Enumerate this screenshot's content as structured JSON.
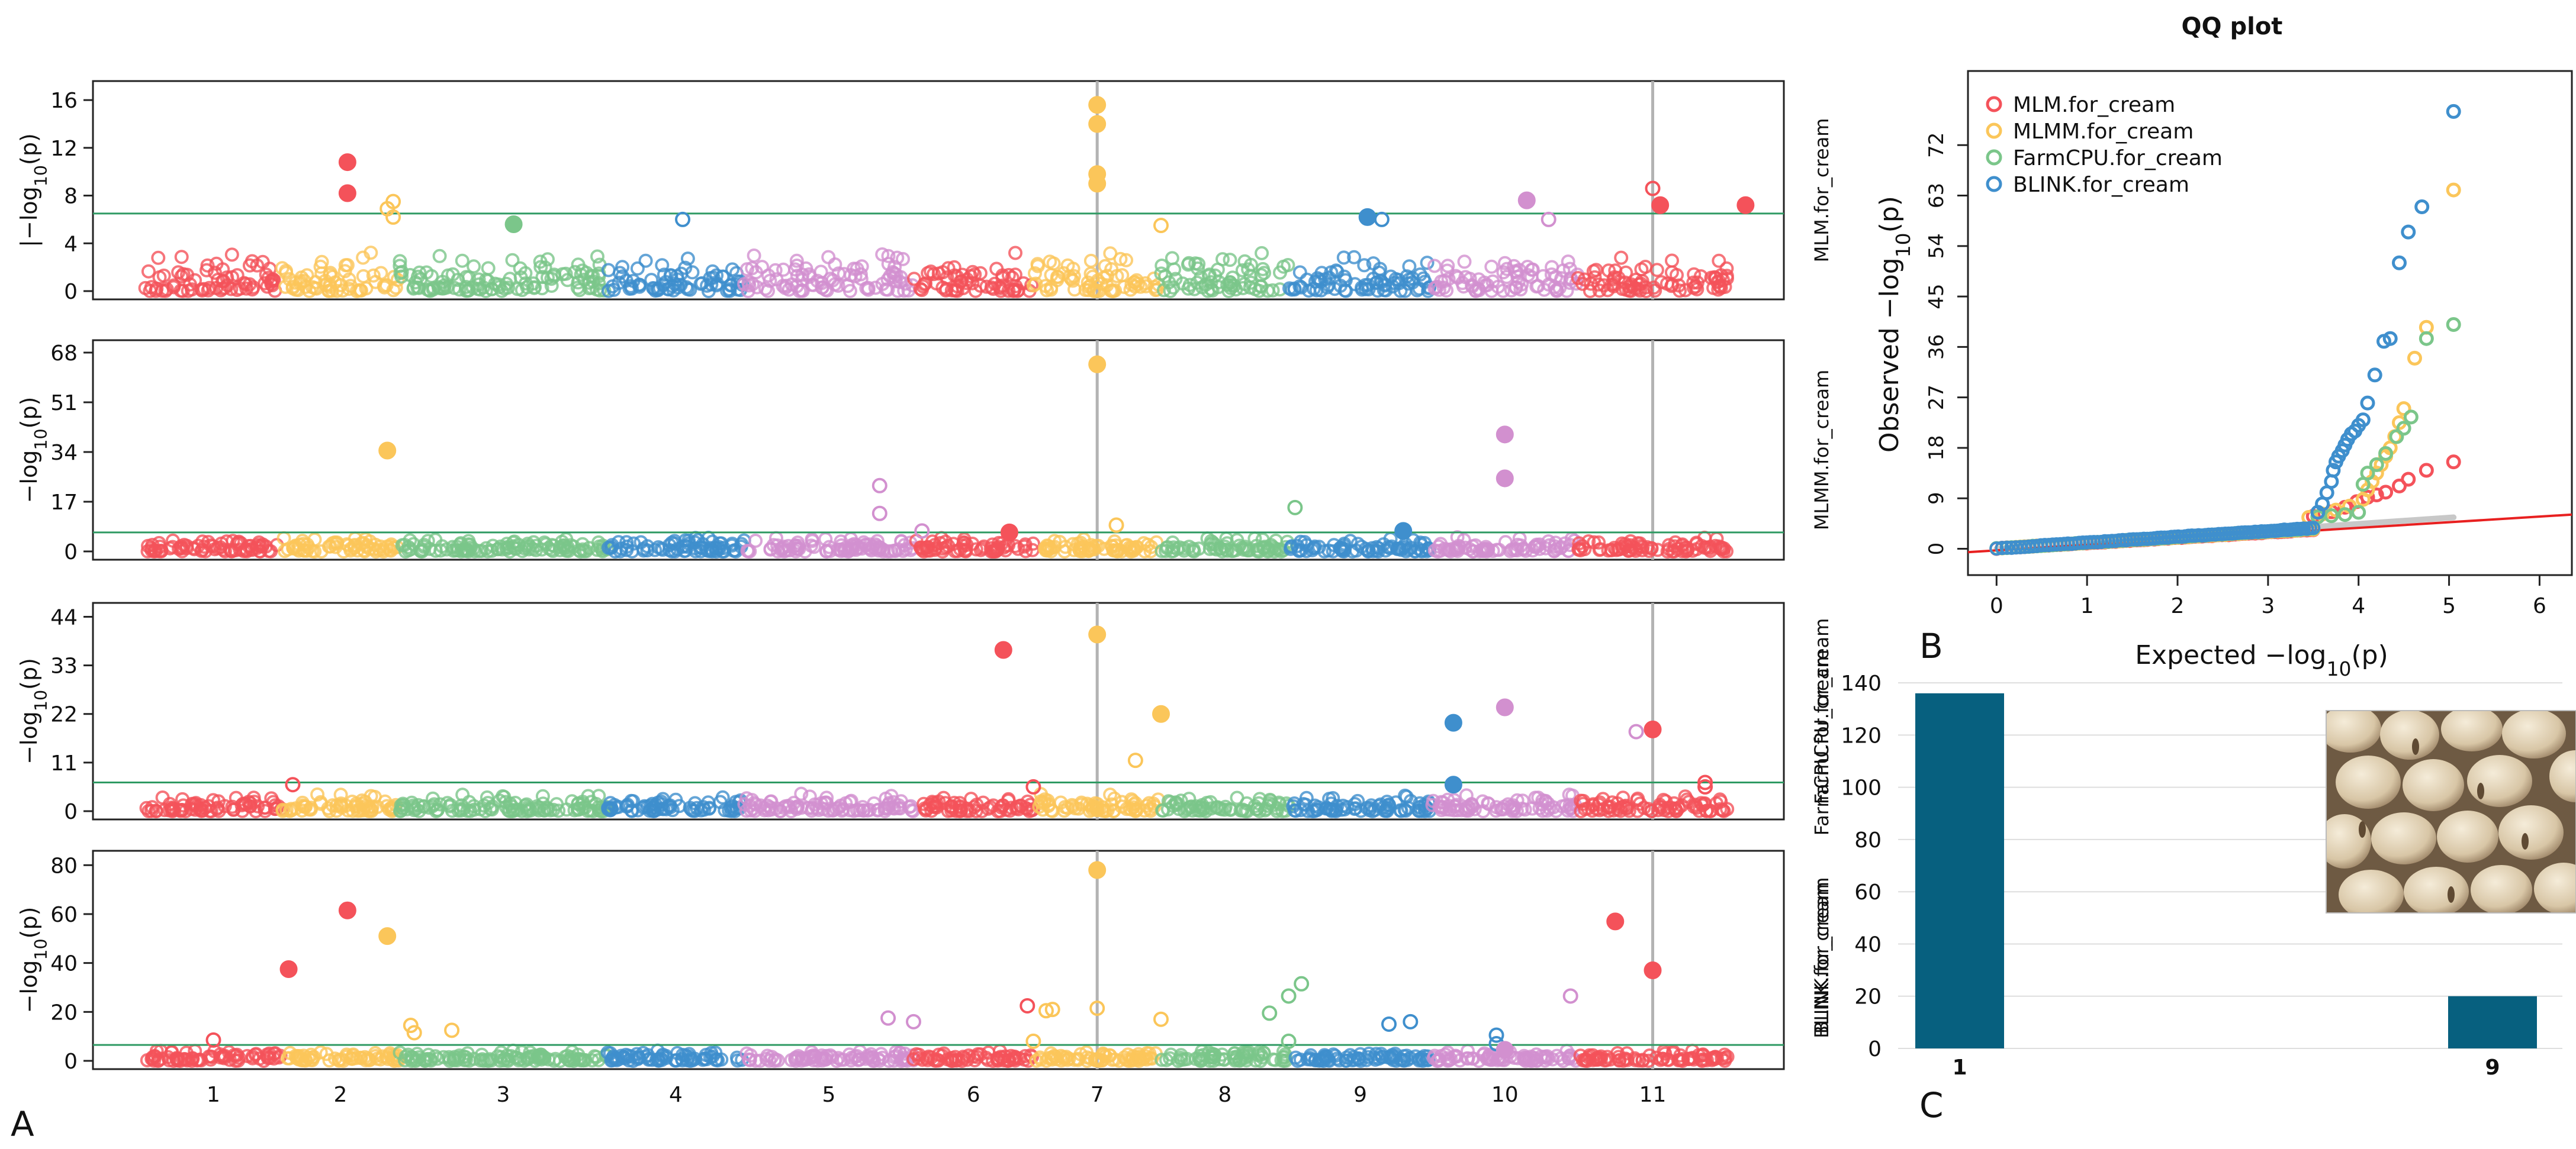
{
  "panel_labels": {
    "a": "A",
    "b": "B",
    "c": "C"
  },
  "colors": {
    "chr": [
      "#f4525a",
      "#fbc65a",
      "#7bc68a",
      "#3f8fcd",
      "#d290cf"
    ],
    "threshold": "#2f9a63",
    "highlight": "#b3b3b3",
    "bar": "#07607f",
    "diagonal": "#e82020",
    "ci": "#c8c8c8"
  },
  "chart_data": [
    {
      "type": "scatter",
      "name": "manhattan",
      "chromosomes": [
        "1",
        "2",
        "3",
        "4",
        "5",
        "6",
        "7",
        "8",
        "9",
        "10",
        "11"
      ],
      "chr_widths": [
        1.05,
        0.9,
        1.6,
        1.05,
        1.3,
        0.92,
        0.98,
        0.98,
        1.1,
        1.12,
        1.15
      ],
      "highlight_chr_positions": [
        7.0,
        11.0
      ],
      "tracks": [
        {
          "ylabel": "MLM.for_cream",
          "axis_label": "|−log10(p)",
          "ylim": [
            0,
            16.8
          ],
          "yticks": [
            0,
            4,
            8,
            12,
            16
          ],
          "threshold": 6.5,
          "base_max": 3.4,
          "hits": [
            {
              "chr": 1,
              "pos": 0.98,
              "y": 10.8,
              "filled": true
            },
            {
              "chr": 1,
              "pos": 0.98,
              "y": 8.2,
              "filled": true
            },
            {
              "chr": 2,
              "pos": 0.45,
              "y": 7.5,
              "filled": false
            },
            {
              "chr": 2,
              "pos": 0.4,
              "y": 6.9,
              "filled": false
            },
            {
              "chr": 2,
              "pos": 0.45,
              "y": 6.2,
              "filled": false
            },
            {
              "chr": 3,
              "pos": 0.05,
              "y": 5.6,
              "filled": true
            },
            {
              "chr": 4,
              "pos": 0.05,
              "y": 6.0,
              "filled": false
            },
            {
              "chr": 7,
              "pos": 0.0,
              "y": 15.6,
              "filled": true
            },
            {
              "chr": 7,
              "pos": 0.0,
              "y": 14.0,
              "filled": true
            },
            {
              "chr": 7,
              "pos": 0.0,
              "y": 9.8,
              "filled": true
            },
            {
              "chr": 7,
              "pos": 0.0,
              "y": 9.0,
              "filled": true
            },
            {
              "chr": 7,
              "pos": 0.5,
              "y": 5.5,
              "filled": false
            },
            {
              "chr": 9,
              "pos": 0.05,
              "y": 6.2,
              "filled": true
            },
            {
              "chr": 9,
              "pos": 0.15,
              "y": 6.0,
              "filled": false
            },
            {
              "chr": 10,
              "pos": 0.15,
              "y": 7.6,
              "filled": true
            },
            {
              "chr": 10,
              "pos": 0.3,
              "y": 6.0,
              "filled": false
            },
            {
              "chr": 11,
              "pos": 0.0,
              "y": 8.6,
              "filled": false
            },
            {
              "chr": 11,
              "pos": 0.05,
              "y": 7.2,
              "filled": true
            },
            {
              "chr": 11,
              "pos": 0.62,
              "y": 7.2,
              "filled": true
            }
          ]
        },
        {
          "ylabel": "MLMM.for_cream",
          "axis_label": "−log10(p)",
          "ylim": [
            0,
            69
          ],
          "yticks": [
            0,
            17,
            34,
            51,
            68
          ],
          "threshold": 6.5,
          "base_max": 5.0,
          "hits": [
            {
              "chr": 2,
              "pos": 0.4,
              "y": 34.5,
              "filled": true
            },
            {
              "chr": 5,
              "pos": 0.3,
              "y": 22.5,
              "filled": false
            },
            {
              "chr": 5,
              "pos": 0.3,
              "y": 13.0,
              "filled": false
            },
            {
              "chr": 5,
              "pos": 0.55,
              "y": 7.0,
              "filled": false
            },
            {
              "chr": 6,
              "pos": 0.3,
              "y": 6.5,
              "filled": true
            },
            {
              "chr": 7,
              "pos": 0.0,
              "y": 64.0,
              "filled": true
            },
            {
              "chr": 7,
              "pos": 0.15,
              "y": 9.0,
              "filled": false
            },
            {
              "chr": 8,
              "pos": 0.55,
              "y": 15.0,
              "filled": false
            },
            {
              "chr": 9,
              "pos": 0.3,
              "y": 7.0,
              "filled": true
            },
            {
              "chr": 10,
              "pos": 0.0,
              "y": 40.0,
              "filled": true
            },
            {
              "chr": 10,
              "pos": 0.0,
              "y": 25.0,
              "filled": true
            }
          ]
        },
        {
          "ylabel": "FarmCPU.for_cream",
          "axis_label": "−log10(p)",
          "ylim": [
            0,
            45
          ],
          "yticks": [
            0,
            11,
            22,
            33,
            44
          ],
          "threshold": 6.5,
          "base_max": 4.0,
          "hits": [
            {
              "chr": 1,
              "pos": 0.58,
              "y": 6.0,
              "filled": false
            },
            {
              "chr": 6,
              "pos": 0.25,
              "y": 36.5,
              "filled": true
            },
            {
              "chr": 6,
              "pos": 0.5,
              "y": 5.5,
              "filled": false
            },
            {
              "chr": 7,
              "pos": 0.0,
              "y": 40.0,
              "filled": true
            },
            {
              "chr": 7,
              "pos": 0.5,
              "y": 22.0,
              "filled": true
            },
            {
              "chr": 7,
              "pos": 0.3,
              "y": 11.5,
              "filled": false
            },
            {
              "chr": 9,
              "pos": 0.65,
              "y": 20.0,
              "filled": true
            },
            {
              "chr": 9,
              "pos": 0.65,
              "y": 6.0,
              "filled": true
            },
            {
              "chr": 10,
              "pos": 0.0,
              "y": 23.5,
              "filled": true
            },
            {
              "chr": 10,
              "pos": 0.9,
              "y": 18.0,
              "filled": false
            },
            {
              "chr": 11,
              "pos": 0.0,
              "y": 18.5,
              "filled": true
            },
            {
              "chr": 11,
              "pos": 0.35,
              "y": 6.5,
              "filled": false
            },
            {
              "chr": 11,
              "pos": 0.35,
              "y": 5.5,
              "filled": false
            }
          ]
        },
        {
          "ylabel": "BLINK.for_cream",
          "axis_label": "−log10(p)",
          "ylim": [
            0,
            82
          ],
          "yticks": [
            0,
            20,
            40,
            60,
            80
          ],
          "threshold": 6.5,
          "base_max": 4.5,
          "hits": [
            {
              "chr": 1,
              "pos": 0.0,
              "y": 8.5,
              "filled": false
            },
            {
              "chr": 1,
              "pos": 0.55,
              "y": 37.5,
              "filled": true
            },
            {
              "chr": 1,
              "pos": 0.98,
              "y": 61.5,
              "filled": true
            },
            {
              "chr": 2,
              "pos": 0.4,
              "y": 51.0,
              "filled": true
            },
            {
              "chr": 2,
              "pos": 0.6,
              "y": 14.5,
              "filled": false
            },
            {
              "chr": 2,
              "pos": 0.63,
              "y": 11.5,
              "filled": false
            },
            {
              "chr": 2,
              "pos": 0.95,
              "y": 12.5,
              "filled": false
            },
            {
              "chr": 5,
              "pos": 0.35,
              "y": 17.5,
              "filled": false
            },
            {
              "chr": 5,
              "pos": 0.5,
              "y": 16.0,
              "filled": false
            },
            {
              "chr": 6,
              "pos": 0.45,
              "y": 22.5,
              "filled": false
            },
            {
              "chr": 7,
              "pos": -0.5,
              "y": 8.0,
              "filled": false
            },
            {
              "chr": 7,
              "pos": -0.4,
              "y": 20.5,
              "filled": false
            },
            {
              "chr": 7,
              "pos": -0.35,
              "y": 21.0,
              "filled": false
            },
            {
              "chr": 7,
              "pos": 0.0,
              "y": 78.0,
              "filled": true
            },
            {
              "chr": 7,
              "pos": 0.0,
              "y": 21.5,
              "filled": false
            },
            {
              "chr": 7,
              "pos": 0.5,
              "y": 17.0,
              "filled": false
            },
            {
              "chr": 8,
              "pos": 0.35,
              "y": 19.5,
              "filled": false
            },
            {
              "chr": 8,
              "pos": 0.5,
              "y": 26.5,
              "filled": false
            },
            {
              "chr": 8,
              "pos": 0.6,
              "y": 31.5,
              "filled": false
            },
            {
              "chr": 8,
              "pos": 0.5,
              "y": 8.0,
              "filled": false
            },
            {
              "chr": 9,
              "pos": 0.2,
              "y": 15.0,
              "filled": false
            },
            {
              "chr": 9,
              "pos": 0.35,
              "y": 16.0,
              "filled": false
            },
            {
              "chr": 9,
              "pos": 0.95,
              "y": 10.5,
              "filled": false
            },
            {
              "chr": 9,
              "pos": 0.95,
              "y": 7.0,
              "filled": false
            },
            {
              "chr": 10,
              "pos": 0.0,
              "y": 4.5,
              "filled": true
            },
            {
              "chr": 10,
              "pos": 0.45,
              "y": 26.5,
              "filled": false
            },
            {
              "chr": 11,
              "pos": -0.25,
              "y": 57.0,
              "filled": true
            },
            {
              "chr": 11,
              "pos": 0.0,
              "y": 37.0,
              "filled": true
            }
          ]
        }
      ]
    },
    {
      "type": "scatter",
      "name": "qq",
      "title": "QQ plot",
      "xlabel": "Expected  −log10(p)",
      "ylabel": "Observed  −log10(p)",
      "xlim": [
        -0.1,
        6.2
      ],
      "ylim": [
        -1,
        81
      ],
      "xticks": [
        0,
        1,
        2,
        3,
        4,
        5,
        6
      ],
      "yticks": [
        0,
        9,
        18,
        27,
        36,
        45,
        54,
        63,
        72
      ],
      "legend_position": "top-left",
      "series": [
        {
          "name": "MLM.for_cream",
          "color": "#f4525a",
          "points": [
            [
              3.5,
              5.8
            ],
            [
              3.7,
              6.6
            ],
            [
              3.85,
              7.4
            ],
            [
              3.98,
              8.4
            ],
            [
              4.1,
              9.2
            ],
            [
              4.2,
              9.6
            ],
            [
              4.3,
              10.1
            ],
            [
              4.45,
              11.2
            ],
            [
              4.55,
              12.4
            ],
            [
              4.75,
              14.0
            ],
            [
              5.05,
              15.5
            ]
          ]
        },
        {
          "name": "MLMM.for_cream",
          "color": "#fbc65a",
          "points": [
            [
              3.45,
              5.6
            ],
            [
              3.6,
              6.2
            ],
            [
              3.75,
              6.9
            ],
            [
              3.9,
              7.6
            ],
            [
              4.05,
              8.8
            ],
            [
              4.1,
              10.5
            ],
            [
              4.15,
              12.0
            ],
            [
              4.2,
              13.5
            ],
            [
              4.25,
              15.0
            ],
            [
              4.3,
              16.5
            ],
            [
              4.35,
              18.0
            ],
            [
              4.4,
              20.0
            ],
            [
              4.45,
              22.5
            ],
            [
              4.5,
              25.0
            ],
            [
              4.62,
              34.0
            ],
            [
              4.75,
              39.5
            ],
            [
              5.05,
              64.0
            ]
          ]
        },
        {
          "name": "FarmCPU.for_cream",
          "color": "#7bc68a",
          "points": [
            [
              3.55,
              5.7
            ],
            [
              3.7,
              5.9
            ],
            [
              3.85,
              6.1
            ],
            [
              4.0,
              6.5
            ],
            [
              4.05,
              11.5
            ],
            [
              4.1,
              13.5
            ],
            [
              4.2,
              15.0
            ],
            [
              4.3,
              17.0
            ],
            [
              4.42,
              20.0
            ],
            [
              4.5,
              21.5
            ],
            [
              4.58,
              23.5
            ],
            [
              4.75,
              37.5
            ],
            [
              5.05,
              40.0
            ]
          ]
        },
        {
          "name": "BLINK.for_cream",
          "color": "#3f8fcd",
          "points": [
            [
              3.55,
              6.5
            ],
            [
              3.6,
              8.0
            ],
            [
              3.65,
              10.0
            ],
            [
              3.7,
              12.0
            ],
            [
              3.72,
              14.0
            ],
            [
              3.75,
              15.5
            ],
            [
              3.78,
              16.5
            ],
            [
              3.82,
              17.5
            ],
            [
              3.85,
              18.5
            ],
            [
              3.88,
              19.5
            ],
            [
              3.92,
              20.5
            ],
            [
              3.96,
              21.0
            ],
            [
              4.0,
              22.0
            ],
            [
              4.05,
              23.0
            ],
            [
              4.1,
              26.0
            ],
            [
              4.18,
              31.0
            ],
            [
              4.28,
              37.0
            ],
            [
              4.35,
              37.5
            ],
            [
              4.45,
              51.0
            ],
            [
              4.55,
              56.5
            ],
            [
              4.7,
              61.0
            ],
            [
              5.05,
              78.0
            ]
          ]
        }
      ]
    },
    {
      "type": "bar",
      "name": "hit-counts",
      "categories": [
        "1",
        "9"
      ],
      "values": [
        136,
        20
      ],
      "ylim": [
        0,
        150
      ],
      "yticks": [
        0,
        20,
        40,
        60,
        80,
        100,
        120,
        140
      ],
      "ylabels": [
        "FarmCPU.for_cream",
        "BLINK.for_cream"
      ],
      "grid": true
    }
  ]
}
